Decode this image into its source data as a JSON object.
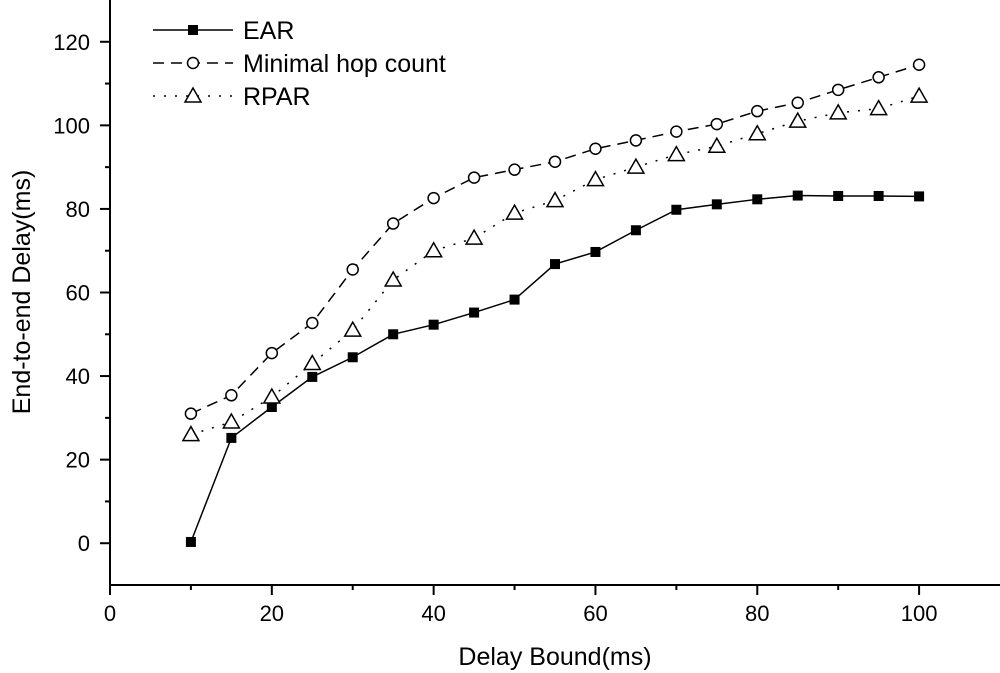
{
  "chart_data": {
    "type": "line",
    "xlabel": "Delay Bound(ms)",
    "ylabel": "End-to-end Delay(ms)",
    "xlim": [
      0,
      110
    ],
    "ylim": [
      -10,
      130
    ],
    "xticks": [
      "0",
      "20",
      "40",
      "60",
      "80",
      "100"
    ],
    "yticks": [
      "0",
      "20",
      "40",
      "60",
      "80",
      "100",
      "120"
    ],
    "grid": false,
    "legend_position": "top-left",
    "x": [
      10,
      15,
      20,
      25,
      30,
      35,
      40,
      45,
      50,
      55,
      60,
      65,
      70,
      75,
      80,
      85,
      90,
      95,
      100
    ],
    "series": [
      {
        "name": "EAR",
        "line_style": "solid",
        "marker": "filled-square",
        "values": [
          0.3,
          25.2,
          32.6,
          39.8,
          44.5,
          50.0,
          52.3,
          55.2,
          58.3,
          66.8,
          69.7,
          74.9,
          79.8,
          81.1,
          82.3,
          83.2,
          83.1,
          83.1,
          83.0
        ]
      },
      {
        "name": "Minimal hop count",
        "line_style": "dashed",
        "marker": "open-circle",
        "values": [
          31.0,
          35.4,
          45.5,
          52.7,
          65.5,
          76.5,
          82.6,
          87.5,
          89.4,
          91.3,
          94.4,
          96.4,
          98.5,
          100.3,
          103.4,
          105.4,
          108.5,
          111.5,
          114.5
        ]
      },
      {
        "name": "RPAR",
        "line_style": "dotted",
        "marker": "open-triangle",
        "values": [
          26.0,
          29.0,
          35.0,
          43.0,
          51.0,
          63.0,
          70.0,
          73.0,
          79.0,
          82.0,
          87.0,
          90.0,
          93.0,
          95.0,
          98.0,
          101.0,
          103.0,
          104.0,
          107.0
        ]
      }
    ]
  }
}
